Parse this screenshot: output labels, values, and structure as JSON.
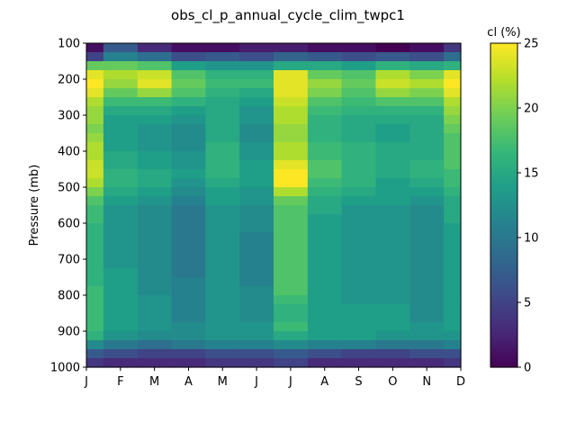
{
  "chart_data": {
    "type": "heatmap",
    "title": "obs_cl_p_annual_cycle_clim_twpc1",
    "xlabel": "",
    "ylabel": "Pressure (mb)",
    "colorbar_label": "cl (%)",
    "colormap": "viridis",
    "x_tick_labels": [
      "J",
      "F",
      "M",
      "A",
      "M",
      "J",
      "J",
      "A",
      "S",
      "O",
      "N",
      "D"
    ],
    "y_tick_labels": [
      "100",
      "200",
      "300",
      "400",
      "500",
      "600",
      "700",
      "800",
      "900",
      "1000"
    ],
    "ylim": [
      1000,
      100
    ],
    "clim": [
      0,
      25
    ],
    "colorbar_ticks": [
      "0",
      "5",
      "10",
      "15",
      "20",
      "25"
    ],
    "pressure_levels": [
      112.5,
      137.5,
      162.5,
      187.5,
      212.5,
      237.5,
      262.5,
      287.5,
      312.5,
      337.5,
      362.5,
      387.5,
      412.5,
      437.5,
      462.5,
      487.5,
      512.5,
      537.5,
      562.5,
      587.5,
      612.5,
      637.5,
      662.5,
      687.5,
      712.5,
      737.5,
      762.5,
      787.5,
      812.5,
      837.5,
      862.5,
      887.5,
      912.5,
      937.5,
      962.5,
      987.5
    ],
    "values": [
      [
        1,
        7,
        3,
        1,
        1,
        2,
        2,
        1,
        1,
        0,
        1,
        4
      ],
      [
        5,
        11,
        9,
        6,
        7,
        6,
        8,
        7,
        6,
        7,
        6,
        9
      ],
      [
        19,
        19,
        18,
        14,
        13,
        13,
        15,
        15,
        14,
        16,
        15,
        16
      ],
      [
        24,
        22,
        23,
        18,
        16,
        16,
        24,
        19,
        18,
        22,
        20,
        24
      ],
      [
        25,
        21,
        24,
        19,
        17,
        17,
        24,
        21,
        19,
        23,
        22,
        25
      ],
      [
        24,
        19,
        21,
        18,
        16,
        15,
        24,
        20,
        18,
        21,
        20,
        24
      ],
      [
        22,
        17,
        17,
        16,
        15,
        14,
        23,
        18,
        17,
        18,
        18,
        22
      ],
      [
        21,
        15,
        15,
        14,
        15,
        13,
        22,
        17,
        16,
        16,
        16,
        21
      ],
      [
        21,
        14,
        14,
        13,
        15,
        13,
        22,
        16,
        15,
        15,
        15,
        20
      ],
      [
        20,
        14,
        13,
        12,
        15,
        12,
        21,
        16,
        15,
        14,
        15,
        19
      ],
      [
        21,
        14,
        13,
        12,
        15,
        12,
        21,
        16,
        15,
        14,
        15,
        18
      ],
      [
        22,
        14,
        13,
        12,
        16,
        13,
        22,
        17,
        16,
        15,
        15,
        18
      ],
      [
        22,
        15,
        14,
        13,
        16,
        13,
        22,
        17,
        16,
        15,
        15,
        18
      ],
      [
        23,
        15,
        14,
        13,
        16,
        14,
        24,
        18,
        16,
        15,
        16,
        18
      ],
      [
        23,
        16,
        15,
        14,
        16,
        14,
        25,
        18,
        16,
        15,
        16,
        17
      ],
      [
        22,
        16,
        15,
        13,
        15,
        14,
        25,
        17,
        16,
        14,
        15,
        17
      ],
      [
        20,
        15,
        14,
        12,
        14,
        13,
        22,
        16,
        15,
        14,
        14,
        16
      ],
      [
        18,
        14,
        13,
        11,
        14,
        13,
        19,
        15,
        14,
        14,
        13,
        15
      ],
      [
        17,
        13,
        12,
        10,
        13,
        12,
        18,
        15,
        13,
        13,
        12,
        15
      ],
      [
        17,
        13,
        12,
        10,
        13,
        12,
        18,
        14,
        13,
        13,
        12,
        15
      ],
      [
        16,
        13,
        12,
        10,
        13,
        12,
        18,
        14,
        13,
        13,
        12,
        14
      ],
      [
        16,
        13,
        12,
        10,
        13,
        11,
        18,
        14,
        13,
        13,
        12,
        14
      ],
      [
        16,
        13,
        12,
        10,
        13,
        11,
        18,
        14,
        13,
        13,
        12,
        14
      ],
      [
        16,
        13,
        12,
        10,
        13,
        11,
        18,
        14,
        13,
        13,
        12,
        14
      ],
      [
        16,
        13,
        12,
        10,
        13,
        11,
        18,
        14,
        13,
        13,
        12,
        14
      ],
      [
        16,
        14,
        12,
        10,
        13,
        11,
        18,
        14,
        13,
        13,
        12,
        14
      ],
      [
        16,
        14,
        12,
        11,
        13,
        11,
        18,
        14,
        13,
        13,
        12,
        14
      ],
      [
        17,
        14,
        12,
        11,
        13,
        12,
        18,
        14,
        13,
        13,
        12,
        14
      ],
      [
        17,
        14,
        13,
        11,
        13,
        12,
        17,
        14,
        13,
        13,
        12,
        14
      ],
      [
        17,
        14,
        13,
        11,
        13,
        12,
        16,
        14,
        14,
        14,
        12,
        14
      ],
      [
        17,
        14,
        13,
        11,
        13,
        12,
        16,
        14,
        14,
        14,
        12,
        14
      ],
      [
        17,
        14,
        13,
        12,
        13,
        13,
        17,
        14,
        14,
        14,
        13,
        14
      ],
      [
        16,
        13,
        12,
        12,
        13,
        13,
        15,
        14,
        14,
        13,
        13,
        13
      ],
      [
        12,
        10,
        9,
        10,
        11,
        11,
        12,
        11,
        11,
        10,
        10,
        11
      ],
      [
        7,
        6,
        5,
        5,
        6,
        6,
        7,
        6,
        5,
        5,
        6,
        6
      ],
      [
        4,
        3,
        3,
        3,
        4,
        4,
        5,
        3,
        3,
        3,
        3,
        4
      ]
    ]
  }
}
